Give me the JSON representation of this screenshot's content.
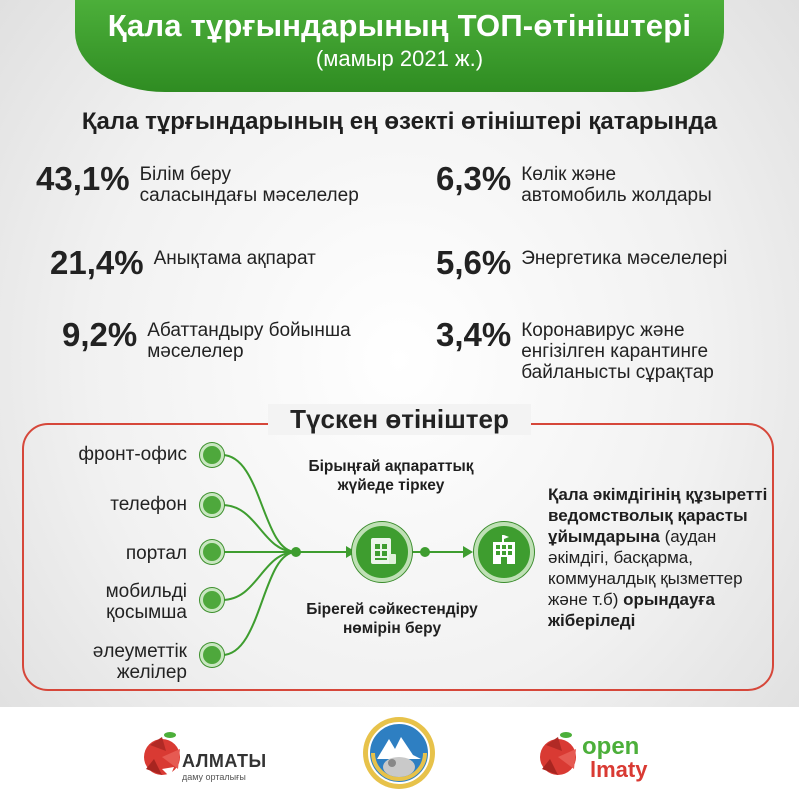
{
  "header": {
    "title": "Қала тұрғындарының ТОП-өтініштері",
    "subtitle": "(мамыр 2021 ж.)"
  },
  "section_title": "Қала тұрғындарының ең өзекті өтініштері қатарында",
  "stats": [
    {
      "value": "43,1%",
      "label_line1": "Білім беру",
      "label_line2": "саласындағы мәселелер",
      "label_line3": ""
    },
    {
      "value": "21,4%",
      "label_line1": "Анықтама ақпарат",
      "label_line2": "",
      "label_line3": ""
    },
    {
      "value": "9,2%",
      "label_line1": "Абаттандыру бойынша",
      "label_line2": "мәселелер",
      "label_line3": ""
    },
    {
      "value": "6,3%",
      "label_line1": "Көлік және",
      "label_line2": "автомобиль жолдары",
      "label_line3": ""
    },
    {
      "value": "5,6%",
      "label_line1": "Энергетика мәселелері",
      "label_line2": "",
      "label_line3": ""
    },
    {
      "value": "3,4%",
      "label_line1": "Коронавирус және",
      "label_line2": "енгізілген карантинге",
      "label_line3": "байланысты сұрақтар"
    }
  ],
  "process": {
    "title": "Түскен өтініштер",
    "channels": [
      {
        "line1": "фронт-офис",
        "line2": ""
      },
      {
        "line1": "телефон",
        "line2": ""
      },
      {
        "line1": "портал",
        "line2": ""
      },
      {
        "line1": "мобильді",
        "line2": "қосымша"
      },
      {
        "line1": "әлеуметтік",
        "line2": "желілер"
      }
    ],
    "step1_line1": "Бірыңғай ақпараттық",
    "step1_line2": "жүйеде тіркеу",
    "step2_line1": "Бірегей сәйкестендіру",
    "step2_line2": "нөмірін беру",
    "dest_bold1": "Қала әкімдігінің құзыретті ведомстволық қарасты ұйымдарына",
    "dest_normal": " (аудан әкімдігі, басқарма, коммуналдық қызметтер және т.б) ",
    "dest_bold2": "орындауға жіберіледі"
  },
  "footer": {
    "logo1_main": "АЛМАТЫ",
    "logo1_sub": "даму орталығы",
    "logo3_line1": "open",
    "logo3_line2": "lmaty"
  },
  "colors": {
    "green": "#3e9d2f",
    "red": "#d6473a"
  }
}
